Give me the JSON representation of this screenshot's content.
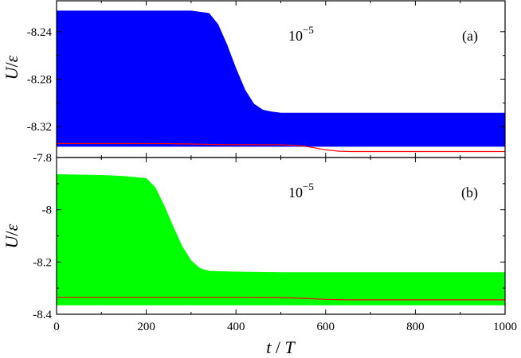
{
  "figure": {
    "xlabel_var": "t",
    "xlabel_sep": " / ",
    "xlabel_unit": "T",
    "xlabel": "t / T"
  },
  "chart_data": [
    {
      "type": "area",
      "panel": "(a)",
      "annotation_base": "10",
      "annotation_exp": "−5",
      "ylabel_var": "U",
      "ylabel_sep": "/",
      "ylabel_unit": "ε",
      "xlim": [
        0,
        1000
      ],
      "ylim": [
        -8.346,
        -8.214
      ],
      "x_ticks": [
        0,
        200,
        400,
        600,
        800,
        1000
      ],
      "x_tick_labels": [
        "0",
        "200",
        "400",
        "600",
        "800",
        "1000"
      ],
      "y_ticks": [
        -8.24,
        -8.28,
        -8.32
      ],
      "y_tick_labels": [
        "-8.24",
        "-8.28",
        "-8.32"
      ],
      "grid": false,
      "series": [
        {
          "kind": "band",
          "color": "#0000ff",
          "x": [
            0,
            100,
            200,
            300,
            340,
            360,
            380,
            400,
            420,
            440,
            460,
            480,
            500,
            600,
            700,
            800,
            900,
            1000
          ],
          "upper": [
            -8.2225,
            -8.2225,
            -8.2225,
            -8.2225,
            -8.2245,
            -8.234,
            -8.251,
            -8.271,
            -8.289,
            -8.301,
            -8.306,
            -8.3075,
            -8.3085,
            -8.3085,
            -8.3085,
            -8.3085,
            -8.3085,
            -8.3085
          ],
          "lower": [
            -8.3367,
            -8.3367,
            -8.3367,
            -8.3367,
            -8.3367,
            -8.3367,
            -8.3367,
            -8.3367,
            -8.3367,
            -8.3367,
            -8.3367,
            -8.3367,
            -8.3367,
            -8.3367,
            -8.3367,
            -8.3367,
            -8.3367,
            -8.3367
          ]
        },
        {
          "kind": "line",
          "color": "#ff0000",
          "x": [
            0,
            100,
            200,
            250,
            300,
            350,
            400,
            450,
            500,
            540,
            570,
            600,
            630,
            660,
            700,
            800,
            900,
            1000
          ],
          "y": [
            -8.3342,
            -8.3342,
            -8.3342,
            -8.3343,
            -8.3346,
            -8.335,
            -8.3352,
            -8.3352,
            -8.3353,
            -8.3358,
            -8.3375,
            -8.3395,
            -8.3407,
            -8.341,
            -8.341,
            -8.341,
            -8.341,
            -8.341
          ]
        }
      ]
    },
    {
      "type": "area",
      "panel": "(b)",
      "annotation_base": "10",
      "annotation_exp": "−5",
      "ylabel_var": "U",
      "ylabel_sep": "/",
      "ylabel_unit": "ε",
      "xlim": [
        0,
        1000
      ],
      "ylim": [
        -8.4,
        -7.8
      ],
      "x_ticks": [
        0,
        200,
        400,
        600,
        800,
        1000
      ],
      "x_tick_labels": [
        "0",
        "200",
        "400",
        "600",
        "800",
        "1000"
      ],
      "y_ticks": [
        -7.8,
        -8,
        -8.2,
        -8.4
      ],
      "y_tick_labels": [
        "-7.8",
        "-8",
        "-8.2",
        "-8.4"
      ],
      "grid": false,
      "series": [
        {
          "kind": "band",
          "color": "#00ff00",
          "x": [
            0,
            100,
            150,
            200,
            220,
            240,
            260,
            280,
            300,
            320,
            340,
            400,
            500,
            600,
            700,
            800,
            900,
            1000
          ],
          "upper": [
            -7.865,
            -7.868,
            -7.872,
            -7.88,
            -7.915,
            -7.985,
            -8.065,
            -8.14,
            -8.195,
            -8.225,
            -8.235,
            -8.238,
            -8.24,
            -8.24,
            -8.24,
            -8.24,
            -8.24,
            -8.24
          ],
          "lower": [
            -8.365,
            -8.365,
            -8.365,
            -8.365,
            -8.365,
            -8.365,
            -8.365,
            -8.365,
            -8.365,
            -8.365,
            -8.365,
            -8.365,
            -8.365,
            -8.365,
            -8.365,
            -8.365,
            -8.365,
            -8.365
          ]
        },
        {
          "kind": "line",
          "color": "#ff0000",
          "x": [
            0,
            100,
            200,
            300,
            400,
            500,
            550,
            600,
            650,
            700,
            800,
            900,
            1000
          ],
          "y": [
            -8.335,
            -8.335,
            -8.335,
            -8.335,
            -8.335,
            -8.336,
            -8.339,
            -8.343,
            -8.345,
            -8.345,
            -8.345,
            -8.345,
            -8.345
          ]
        }
      ]
    }
  ]
}
